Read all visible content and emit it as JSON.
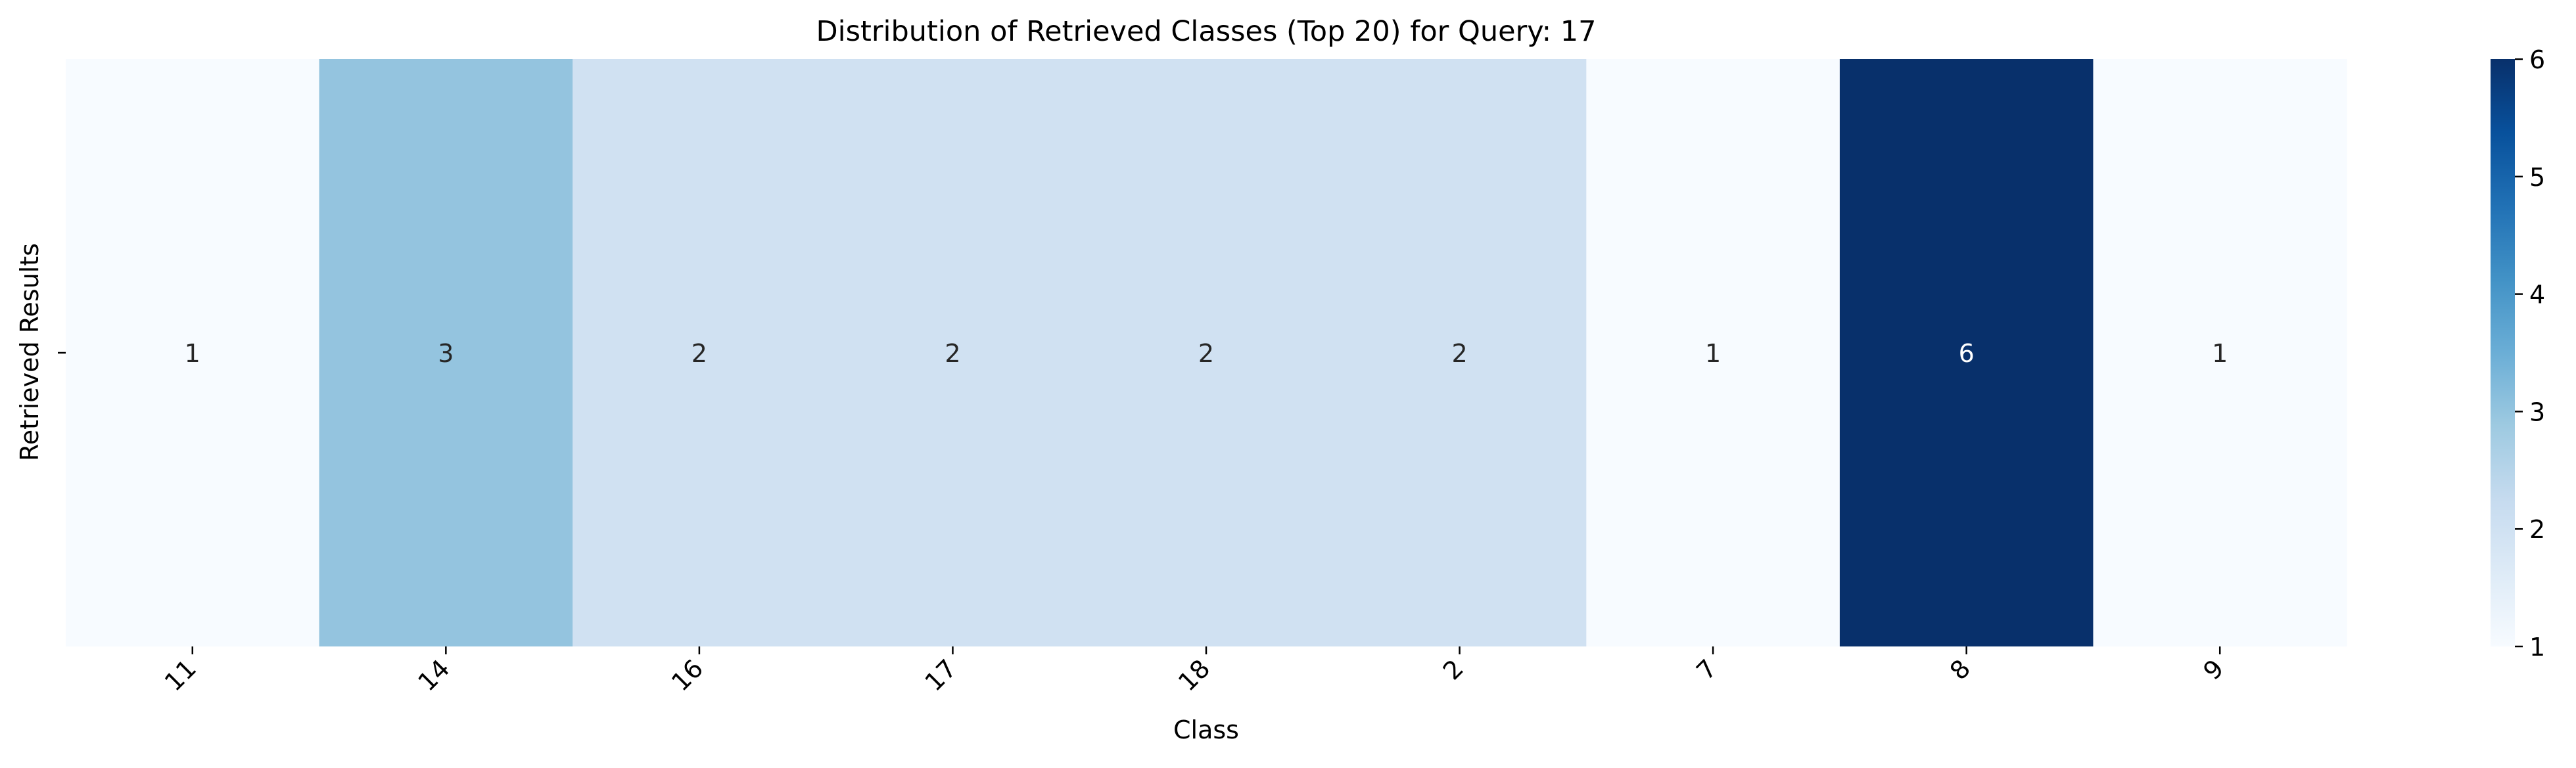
{
  "chart_data": {
    "type": "heatmap",
    "title": "Distribution of Retrieved Classes (Top 20) for Query: 17",
    "xlabel": "Class",
    "ylabel": "Retrieved Results",
    "categories": [
      "11",
      "14",
      "16",
      "17",
      "18",
      "2",
      "7",
      "8",
      "9"
    ],
    "values": [
      1,
      3,
      2,
      2,
      2,
      2,
      1,
      6,
      1
    ],
    "annotations": [
      "1",
      "3",
      "2",
      "2",
      "2",
      "2",
      "1",
      "6",
      "1"
    ],
    "y_tick_labels": [
      ""
    ],
    "colormap": "Blues",
    "colorbar": {
      "range": [
        1,
        6
      ],
      "ticks": [
        "1",
        "2",
        "3",
        "4",
        "5",
        "6"
      ]
    },
    "grid": false
  },
  "colors": {
    "low": "#f7fbff",
    "high": "#08306b",
    "annotation_dark": "#262626",
    "annotation_light": "#ffffff"
  }
}
